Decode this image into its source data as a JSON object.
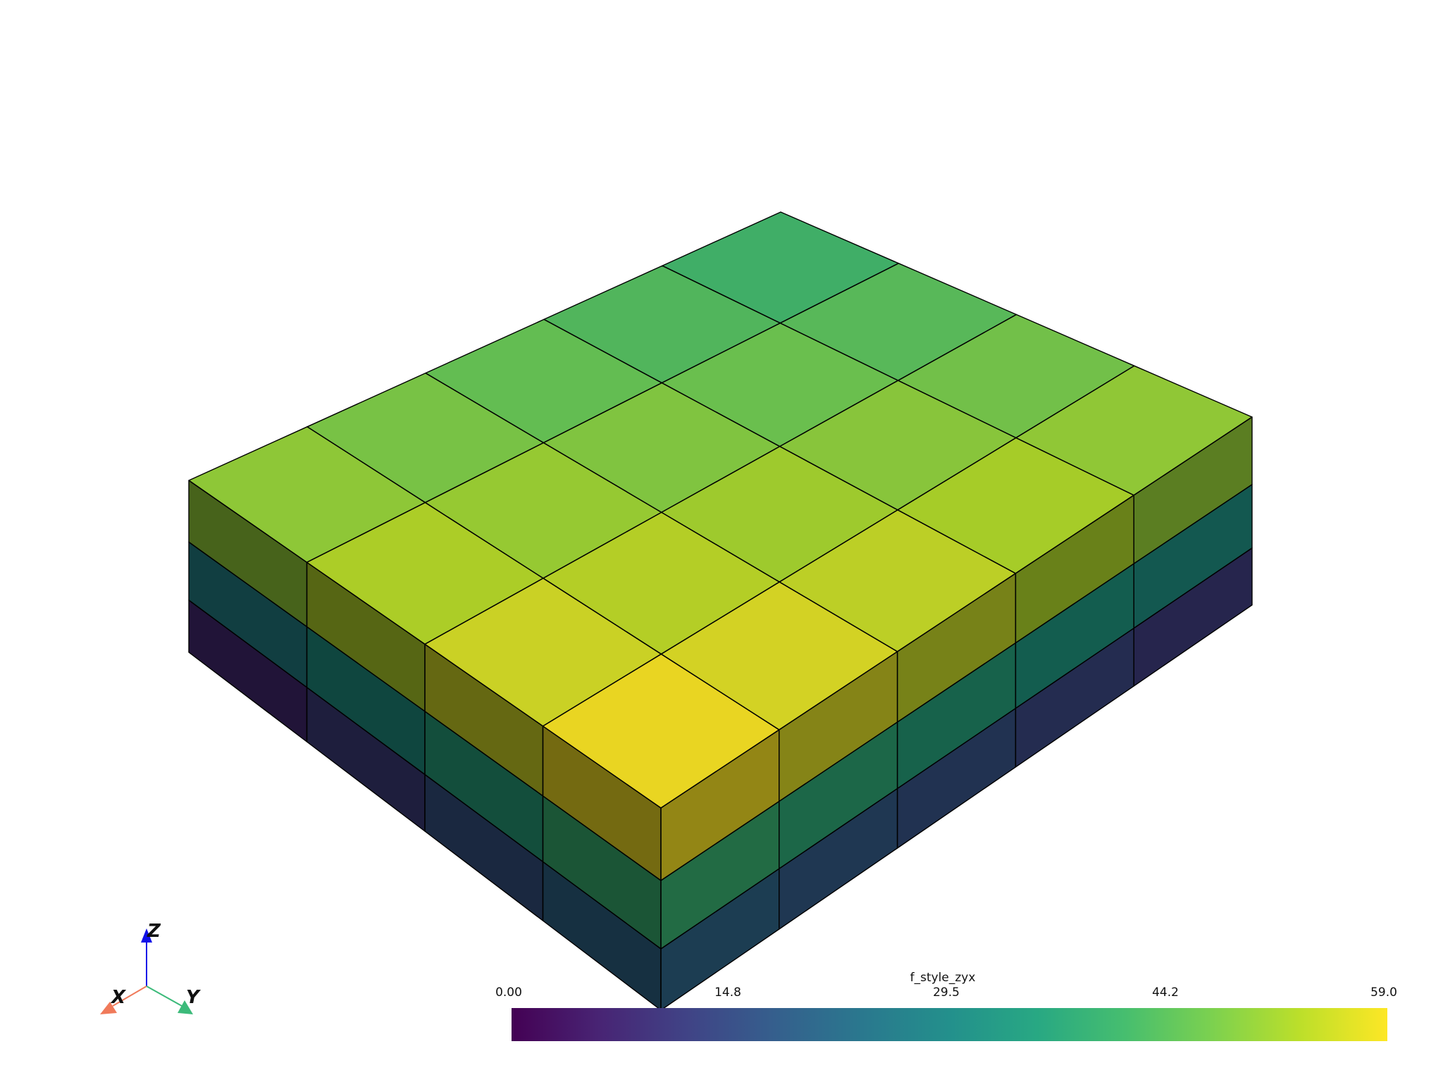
{
  "scene": {
    "mesh": {
      "grid_x_cells": 4,
      "grid_y_cells": 5,
      "layers": 3,
      "edge_color": "#000000",
      "shading": "flat"
    }
  },
  "scalar_bar": {
    "title": "f_style_zyx",
    "colormap": "viridis",
    "range": [
      0,
      59
    ],
    "tick_labels": [
      "0.00",
      "14.8",
      "29.5",
      "44.2",
      "59.0"
    ]
  },
  "orientation_axes": {
    "x_label": "X",
    "y_label": "Y",
    "z_label": "Z",
    "x_color": "#f07a5a",
    "y_color": "#3cba7a",
    "z_color": "#1010e8"
  }
}
